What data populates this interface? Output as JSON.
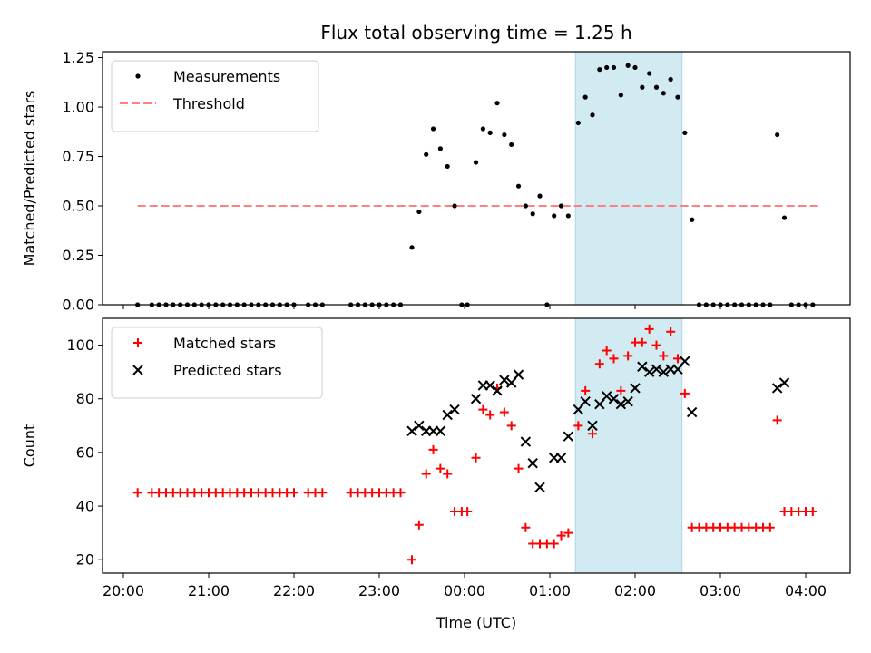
{
  "title": "Flux total observing time = 1.25 h",
  "xlabel": "Time (UTC)",
  "x_ticks": [
    "20:00",
    "21:00",
    "22:00",
    "23:00",
    "00:00",
    "01:00",
    "02:00",
    "03:00",
    "04:00"
  ],
  "highlight": {
    "start": "01:18",
    "end": "02:33",
    "color": "#add8e6"
  },
  "chart_data": [
    {
      "type": "scatter",
      "ylabel": "Matched/Predicted stars",
      "ylim": [
        0,
        1.28
      ],
      "yticks": [
        "0.00",
        "0.25",
        "0.50",
        "0.75",
        "1.00",
        "1.25"
      ],
      "legend_position": "top-left",
      "threshold": {
        "name": "Threshold",
        "value": 0.5,
        "x_start": "20:10",
        "x_end": "04:10",
        "color": "#ff8080"
      },
      "series": [
        {
          "name": "Measurements",
          "color": "#000000",
          "marker": "dot",
          "points": [
            [
              "20:10",
              0
            ],
            [
              "20:20",
              0
            ],
            [
              "20:25",
              0
            ],
            [
              "20:30",
              0
            ],
            [
              "20:35",
              0
            ],
            [
              "20:40",
              0
            ],
            [
              "20:45",
              0
            ],
            [
              "20:50",
              0
            ],
            [
              "20:55",
              0
            ],
            [
              "21:00",
              0
            ],
            [
              "21:05",
              0
            ],
            [
              "21:10",
              0
            ],
            [
              "21:15",
              0
            ],
            [
              "21:20",
              0
            ],
            [
              "21:25",
              0
            ],
            [
              "21:30",
              0
            ],
            [
              "21:35",
              0
            ],
            [
              "21:40",
              0
            ],
            [
              "21:45",
              0
            ],
            [
              "21:50",
              0
            ],
            [
              "21:55",
              0
            ],
            [
              "22:00",
              0
            ],
            [
              "22:10",
              0
            ],
            [
              "22:15",
              0
            ],
            [
              "22:20",
              0
            ],
            [
              "22:40",
              0
            ],
            [
              "22:45",
              0
            ],
            [
              "22:50",
              0
            ],
            [
              "22:55",
              0
            ],
            [
              "23:00",
              0
            ],
            [
              "23:05",
              0
            ],
            [
              "23:10",
              0
            ],
            [
              "23:15",
              0
            ],
            [
              "23:23",
              0.29
            ],
            [
              "23:28",
              0.47
            ],
            [
              "23:33",
              0.76
            ],
            [
              "23:38",
              0.89
            ],
            [
              "23:43",
              0.79
            ],
            [
              "23:48",
              0.7
            ],
            [
              "23:53",
              0.5
            ],
            [
              "23:58",
              0
            ],
            [
              "00:02",
              0
            ],
            [
              "00:08",
              0.72
            ],
            [
              "00:13",
              0.89
            ],
            [
              "00:18",
              0.87
            ],
            [
              "00:23",
              1.02
            ],
            [
              "00:28",
              0.86
            ],
            [
              "00:33",
              0.81
            ],
            [
              "00:38",
              0.6
            ],
            [
              "00:43",
              0.5
            ],
            [
              "00:48",
              0.46
            ],
            [
              "00:53",
              0.55
            ],
            [
              "00:58",
              0
            ],
            [
              "01:03",
              0.45
            ],
            [
              "01:08",
              0.5
            ],
            [
              "01:13",
              0.45
            ],
            [
              "01:20",
              0.92
            ],
            [
              "01:25",
              1.05
            ],
            [
              "01:30",
              0.96
            ],
            [
              "01:35",
              1.19
            ],
            [
              "01:40",
              1.2
            ],
            [
              "01:45",
              1.2
            ],
            [
              "01:50",
              1.06
            ],
            [
              "01:55",
              1.21
            ],
            [
              "02:00",
              1.2
            ],
            [
              "02:05",
              1.1
            ],
            [
              "02:10",
              1.17
            ],
            [
              "02:15",
              1.1
            ],
            [
              "02:20",
              1.07
            ],
            [
              "02:25",
              1.14
            ],
            [
              "02:30",
              1.05
            ],
            [
              "02:35",
              0.87
            ],
            [
              "02:40",
              0.43
            ],
            [
              "02:45",
              0
            ],
            [
              "02:50",
              0
            ],
            [
              "02:55",
              0
            ],
            [
              "03:00",
              0
            ],
            [
              "03:05",
              0
            ],
            [
              "03:10",
              0
            ],
            [
              "03:15",
              0
            ],
            [
              "03:20",
              0
            ],
            [
              "03:25",
              0
            ],
            [
              "03:30",
              0
            ],
            [
              "03:35",
              0
            ],
            [
              "03:40",
              0.86
            ],
            [
              "03:45",
              0.44
            ],
            [
              "03:50",
              0
            ],
            [
              "03:55",
              0
            ],
            [
              "04:00",
              0
            ],
            [
              "04:05",
              0
            ]
          ]
        }
      ]
    },
    {
      "type": "scatter",
      "ylabel": "Count",
      "ylim": [
        15,
        110
      ],
      "yticks": [
        "20",
        "40",
        "60",
        "80",
        "100"
      ],
      "legend_position": "top-left",
      "series": [
        {
          "name": "Matched stars",
          "color": "#ff0000",
          "marker": "plus",
          "points": [
            [
              "20:10",
              45
            ],
            [
              "20:20",
              45
            ],
            [
              "20:25",
              45
            ],
            [
              "20:30",
              45
            ],
            [
              "20:35",
              45
            ],
            [
              "20:40",
              45
            ],
            [
              "20:45",
              45
            ],
            [
              "20:50",
              45
            ],
            [
              "20:55",
              45
            ],
            [
              "21:00",
              45
            ],
            [
              "21:05",
              45
            ],
            [
              "21:10",
              45
            ],
            [
              "21:15",
              45
            ],
            [
              "21:20",
              45
            ],
            [
              "21:25",
              45
            ],
            [
              "21:30",
              45
            ],
            [
              "21:35",
              45
            ],
            [
              "21:40",
              45
            ],
            [
              "21:45",
              45
            ],
            [
              "21:50",
              45
            ],
            [
              "21:55",
              45
            ],
            [
              "22:00",
              45
            ],
            [
              "22:10",
              45
            ],
            [
              "22:15",
              45
            ],
            [
              "22:20",
              45
            ],
            [
              "22:40",
              45
            ],
            [
              "22:45",
              45
            ],
            [
              "22:50",
              45
            ],
            [
              "22:55",
              45
            ],
            [
              "23:00",
              45
            ],
            [
              "23:05",
              45
            ],
            [
              "23:10",
              45
            ],
            [
              "23:15",
              45
            ],
            [
              "23:23",
              20
            ],
            [
              "23:28",
              33
            ],
            [
              "23:33",
              52
            ],
            [
              "23:38",
              61
            ],
            [
              "23:43",
              54
            ],
            [
              "23:48",
              52
            ],
            [
              "23:53",
              38
            ],
            [
              "23:58",
              38
            ],
            [
              "00:02",
              38
            ],
            [
              "00:08",
              58
            ],
            [
              "00:13",
              76
            ],
            [
              "00:18",
              74
            ],
            [
              "00:23",
              84
            ],
            [
              "00:28",
              75
            ],
            [
              "00:33",
              70
            ],
            [
              "00:38",
              54
            ],
            [
              "00:43",
              32
            ],
            [
              "00:48",
              26
            ],
            [
              "00:53",
              26
            ],
            [
              "00:58",
              26
            ],
            [
              "01:03",
              26
            ],
            [
              "01:08",
              29
            ],
            [
              "01:13",
              30
            ],
            [
              "01:20",
              70
            ],
            [
              "01:25",
              83
            ],
            [
              "01:30",
              67
            ],
            [
              "01:35",
              93
            ],
            [
              "01:40",
              98
            ],
            [
              "01:45",
              95
            ],
            [
              "01:50",
              83
            ],
            [
              "01:55",
              96
            ],
            [
              "02:00",
              101
            ],
            [
              "02:05",
              101
            ],
            [
              "02:10",
              106
            ],
            [
              "02:15",
              100
            ],
            [
              "02:20",
              96
            ],
            [
              "02:25",
              105
            ],
            [
              "02:30",
              95
            ],
            [
              "02:35",
              82
            ],
            [
              "02:40",
              32
            ],
            [
              "02:45",
              32
            ],
            [
              "02:50",
              32
            ],
            [
              "02:55",
              32
            ],
            [
              "03:00",
              32
            ],
            [
              "03:05",
              32
            ],
            [
              "03:10",
              32
            ],
            [
              "03:15",
              32
            ],
            [
              "03:20",
              32
            ],
            [
              "03:25",
              32
            ],
            [
              "03:30",
              32
            ],
            [
              "03:35",
              32
            ],
            [
              "03:40",
              72
            ],
            [
              "03:45",
              38
            ],
            [
              "03:50",
              38
            ],
            [
              "03:55",
              38
            ],
            [
              "04:00",
              38
            ],
            [
              "04:05",
              38
            ]
          ]
        },
        {
          "name": "Predicted stars",
          "color": "#000000",
          "marker": "x",
          "points": [
            [
              "23:23",
              68
            ],
            [
              "23:28",
              70
            ],
            [
              "23:33",
              68
            ],
            [
              "23:38",
              68
            ],
            [
              "23:43",
              68
            ],
            [
              "23:48",
              74
            ],
            [
              "23:53",
              76
            ],
            [
              "00:08",
              80
            ],
            [
              "00:13",
              85
            ],
            [
              "00:18",
              85
            ],
            [
              "00:23",
              83
            ],
            [
              "00:28",
              87
            ],
            [
              "00:33",
              86
            ],
            [
              "00:38",
              89
            ],
            [
              "00:43",
              64
            ],
            [
              "00:48",
              56
            ],
            [
              "00:53",
              47
            ],
            [
              "01:03",
              58
            ],
            [
              "01:08",
              58
            ],
            [
              "01:13",
              66
            ],
            [
              "01:20",
              76
            ],
            [
              "01:25",
              79
            ],
            [
              "01:30",
              70
            ],
            [
              "01:35",
              78
            ],
            [
              "01:40",
              81
            ],
            [
              "01:45",
              80
            ],
            [
              "01:50",
              78
            ],
            [
              "01:55",
              79
            ],
            [
              "02:00",
              84
            ],
            [
              "02:05",
              92
            ],
            [
              "02:10",
              90
            ],
            [
              "02:15",
              91
            ],
            [
              "02:20",
              90
            ],
            [
              "02:25",
              91
            ],
            [
              "02:30",
              91
            ],
            [
              "02:35",
              94
            ],
            [
              "02:40",
              75
            ],
            [
              "03:40",
              84
            ],
            [
              "03:45",
              86
            ]
          ]
        }
      ]
    }
  ]
}
